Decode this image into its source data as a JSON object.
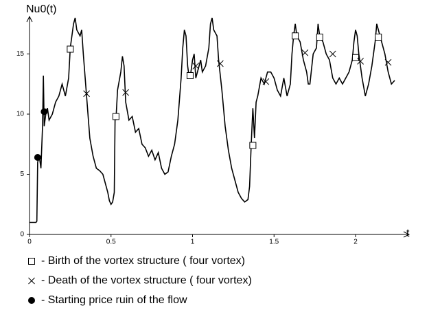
{
  "chart_data": {
    "type": "line",
    "ylabel": "Nu0(t)",
    "xlabel": "t",
    "xlim": [
      0,
      2.3
    ],
    "ylim": [
      0,
      18
    ],
    "xticks": [
      0,
      0.5,
      1,
      1.5,
      2
    ],
    "yticks": [
      0,
      5,
      10,
      15
    ],
    "series": [
      {
        "color": "#000000",
        "marker": "none",
        "x": [
          0,
          0.04,
          0.045,
          0.05,
          0.06,
          0.07,
          0.08,
          0.085,
          0.09,
          0.1,
          0.11,
          0.12,
          0.14,
          0.16,
          0.18,
          0.2,
          0.22,
          0.24,
          0.25,
          0.27,
          0.28,
          0.29,
          0.31,
          0.32,
          0.33,
          0.35,
          0.37,
          0.39,
          0.41,
          0.43,
          0.45,
          0.46,
          0.48,
          0.49,
          0.5,
          0.51,
          0.52,
          0.525,
          0.53,
          0.54,
          0.56,
          0.57,
          0.58,
          0.59,
          0.61,
          0.63,
          0.65,
          0.67,
          0.69,
          0.71,
          0.73,
          0.75,
          0.77,
          0.79,
          0.81,
          0.83,
          0.85,
          0.87,
          0.89,
          0.91,
          0.93,
          0.94,
          0.95,
          0.96,
          0.97,
          0.98,
          0.99,
          1.0,
          1.01,
          1.02,
          1.03,
          1.04,
          1.05,
          1.06,
          1.08,
          1.1,
          1.11,
          1.12,
          1.13,
          1.15,
          1.16,
          1.18,
          1.2,
          1.22,
          1.24,
          1.26,
          1.28,
          1.3,
          1.32,
          1.34,
          1.35,
          1.36,
          1.37,
          1.38,
          1.39,
          1.4,
          1.42,
          1.44,
          1.46,
          1.48,
          1.5,
          1.52,
          1.54,
          1.56,
          1.58,
          1.6,
          1.61,
          1.62,
          1.63,
          1.64,
          1.66,
          1.68,
          1.7,
          1.71,
          1.72,
          1.74,
          1.76,
          1.77,
          1.78,
          1.8,
          1.82,
          1.84,
          1.86,
          1.88,
          1.9,
          1.92,
          1.94,
          1.96,
          1.98,
          1.99,
          2.0,
          2.01,
          2.02,
          2.04,
          2.06,
          2.08,
          2.1,
          2.12,
          2.13,
          2.14,
          2.16,
          2.18,
          2.2,
          2.22,
          2.24
        ],
        "values": [
          1,
          1,
          1.1,
          6,
          6.5,
          5.5,
          9,
          13.2,
          9,
          10,
          10.5,
          9.5,
          10,
          11,
          11.5,
          12.5,
          11.5,
          13,
          15.5,
          17.5,
          18,
          17,
          16.5,
          17,
          15,
          11.5,
          8,
          6.5,
          5.5,
          5.3,
          5,
          4.5,
          3.5,
          2.8,
          2.5,
          2.7,
          3.5,
          9.8,
          9.5,
          12,
          13.5,
          14.8,
          14,
          11,
          9.5,
          9.8,
          8.5,
          8.8,
          7.5,
          7.2,
          6.5,
          7,
          6.2,
          6.8,
          5.5,
          5,
          5.2,
          6.5,
          7.5,
          9.5,
          13,
          15.5,
          17,
          16.5,
          14,
          13,
          13.5,
          14.5,
          15,
          13,
          13.5,
          14,
          14.5,
          13.5,
          14,
          15.5,
          17.5,
          18,
          17,
          16.5,
          14.5,
          12,
          9,
          7,
          5.5,
          4.5,
          3.5,
          3,
          2.7,
          2.9,
          4,
          7.5,
          10.5,
          8,
          11,
          11.5,
          13,
          12.5,
          13.5,
          13.5,
          13,
          12,
          11.5,
          13,
          11.5,
          12.5,
          15,
          16.5,
          17.5,
          16.5,
          16,
          14.5,
          13.5,
          12.5,
          12.5,
          15,
          15.5,
          17.5,
          16.5,
          16,
          15,
          14.5,
          13,
          12.5,
          13,
          12.5,
          13,
          13.5,
          14.5,
          16,
          17,
          16.5,
          15,
          13,
          11.5,
          12.5,
          14,
          16,
          17.5,
          17,
          16,
          15,
          13.5,
          12.5,
          12.8
        ]
      },
      {
        "name": "- Birth of the vortex structure ( four vortex)",
        "color": "#000000",
        "marker": "square",
        "x": [
          0.25,
          0.53,
          0.985,
          1.37,
          1.63,
          1.78,
          2.0,
          2.14
        ],
        "values": [
          15.4,
          9.8,
          13.2,
          7.4,
          16.5,
          16.4,
          14.7,
          16.4
        ]
      },
      {
        "name": "- Death of the vortex structure ( four vortex)",
        "color": "#000000",
        "marker": "cross",
        "x": [
          0.35,
          0.59,
          1.02,
          1.17,
          1.45,
          1.69,
          1.86,
          2.03,
          2.2
        ],
        "values": [
          11.7,
          11.8,
          14,
          14.2,
          12.7,
          15.1,
          15,
          14.4,
          14.3
        ]
      },
      {
        "name": "- Starting price ruin of the flow",
        "color": "#000000",
        "marker": "dot",
        "x": [
          0.05,
          0.09
        ],
        "values": [
          6.4,
          10.2
        ]
      }
    ]
  }
}
